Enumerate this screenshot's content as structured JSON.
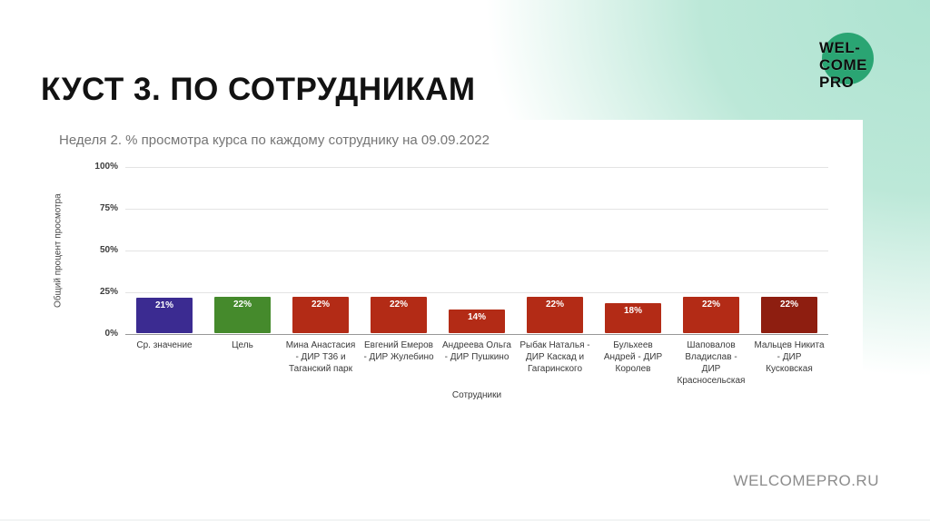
{
  "slide": {
    "title": "КУСТ 3. ПО СОТРУДНИКАМ",
    "footer_url": "WELCOMEPRO.RU",
    "accent_color": "#aee3d1",
    "logo": {
      "line1": "WEL-",
      "line2": "COME",
      "line3": "PRO",
      "circle_color": "#2aa573"
    }
  },
  "chart_data": {
    "type": "bar",
    "title": "Неделя 2. % просмотра курса по каждому сотруднику на 09.09.2022",
    "xlabel": "Сотрудники",
    "ylabel": "Общий процент просмотра",
    "ylim": [
      0,
      100
    ],
    "yticks": [
      "100%",
      "75%",
      "50%",
      "25%",
      "0%"
    ],
    "grid": true,
    "legend": false,
    "categories": [
      "Ср. значение",
      "Цель",
      "Мина Анастасия - ДИР Т36 и Таганский парк",
      "Евгений Емеров - ДИР Жулебино",
      "Андреева Ольга - ДИР Пушкино",
      "Рыбак Наталья - ДИР Каскад и Гагаринского",
      "Бульхеев Андрей - ДИР Королев",
      "Шаповалов Владислав - ДИР Красносельская",
      "Мальцев Никита - ДИР Кусковская"
    ],
    "values": [
      21,
      22,
      22,
      22,
      14,
      22,
      18,
      22,
      22
    ],
    "value_labels": [
      "21%",
      "22%",
      "22%",
      "22%",
      "14%",
      "22%",
      "18%",
      "22%",
      "22%"
    ],
    "bar_colors": [
      "#3b2b91",
      "#458a2c",
      "#b32b16",
      "#b32b16",
      "#b32b16",
      "#b32b16",
      "#b32b16",
      "#b32b16",
      "#8e1e10"
    ]
  }
}
